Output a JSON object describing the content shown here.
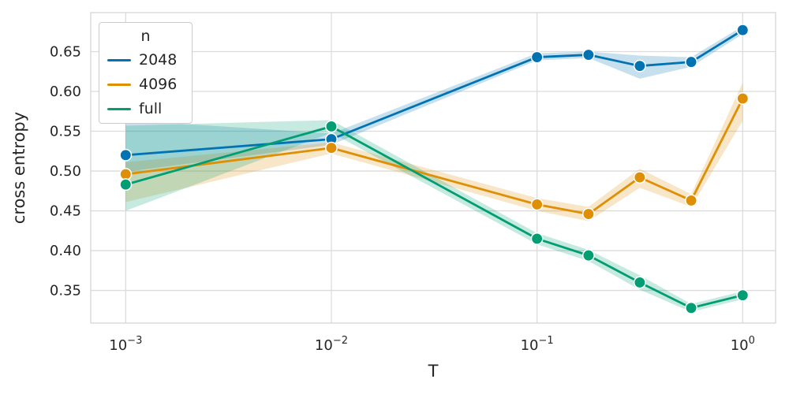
{
  "legend": {
    "title": "n"
  },
  "chart_data": {
    "type": "line",
    "title": "",
    "xlabel": "T",
    "ylabel": "cross entropy",
    "x_scale": "log",
    "grid": true,
    "legend_position": "upper left",
    "band_opacity": 0.22,
    "x": [
      0.001,
      0.01,
      0.1,
      0.178,
      0.316,
      0.562,
      1.0
    ],
    "series": [
      {
        "name": "2048",
        "color": "#0173b2",
        "values": [
          0.52,
          0.54,
          0.643,
          0.646,
          0.632,
          0.637,
          0.677
        ],
        "band_lo": [
          0.499,
          0.533,
          0.639,
          0.642,
          0.616,
          0.631,
          0.672
        ],
        "band_hi": [
          0.564,
          0.547,
          0.648,
          0.65,
          0.645,
          0.643,
          0.682
        ]
      },
      {
        "name": "4096",
        "color": "#de8f05",
        "values": [
          0.496,
          0.529,
          0.458,
          0.446,
          0.492,
          0.463,
          0.591
        ],
        "band_lo": [
          0.461,
          0.522,
          0.45,
          0.437,
          0.479,
          0.455,
          0.563
        ],
        "band_hi": [
          0.511,
          0.536,
          0.466,
          0.455,
          0.503,
          0.471,
          0.611
        ]
      },
      {
        "name": "full",
        "color": "#029e73",
        "values": [
          0.483,
          0.556,
          0.415,
          0.394,
          0.36,
          0.328,
          0.344
        ],
        "band_lo": [
          0.45,
          0.548,
          0.408,
          0.387,
          0.351,
          0.323,
          0.339
        ],
        "band_hi": [
          0.557,
          0.564,
          0.422,
          0.401,
          0.369,
          0.333,
          0.349
        ]
      }
    ],
    "xlim_log10": [
      -3.17,
      0.16
    ],
    "ylim": [
      0.309,
      0.699
    ],
    "xticks": [
      {
        "value": 0.001,
        "base": "10",
        "exp": "−3"
      },
      {
        "value": 0.01,
        "base": "10",
        "exp": "−2"
      },
      {
        "value": 0.1,
        "base": "10",
        "exp": "−1"
      },
      {
        "value": 1.0,
        "base": "10",
        "exp": "0"
      }
    ],
    "yticks": [
      0.35,
      0.4,
      0.45,
      0.5,
      0.55,
      0.6,
      0.65
    ],
    "colors": {
      "grid": "#dcdcdc",
      "spine": "#d5d5d5",
      "text": "#262626",
      "background": "#ffffff"
    }
  }
}
